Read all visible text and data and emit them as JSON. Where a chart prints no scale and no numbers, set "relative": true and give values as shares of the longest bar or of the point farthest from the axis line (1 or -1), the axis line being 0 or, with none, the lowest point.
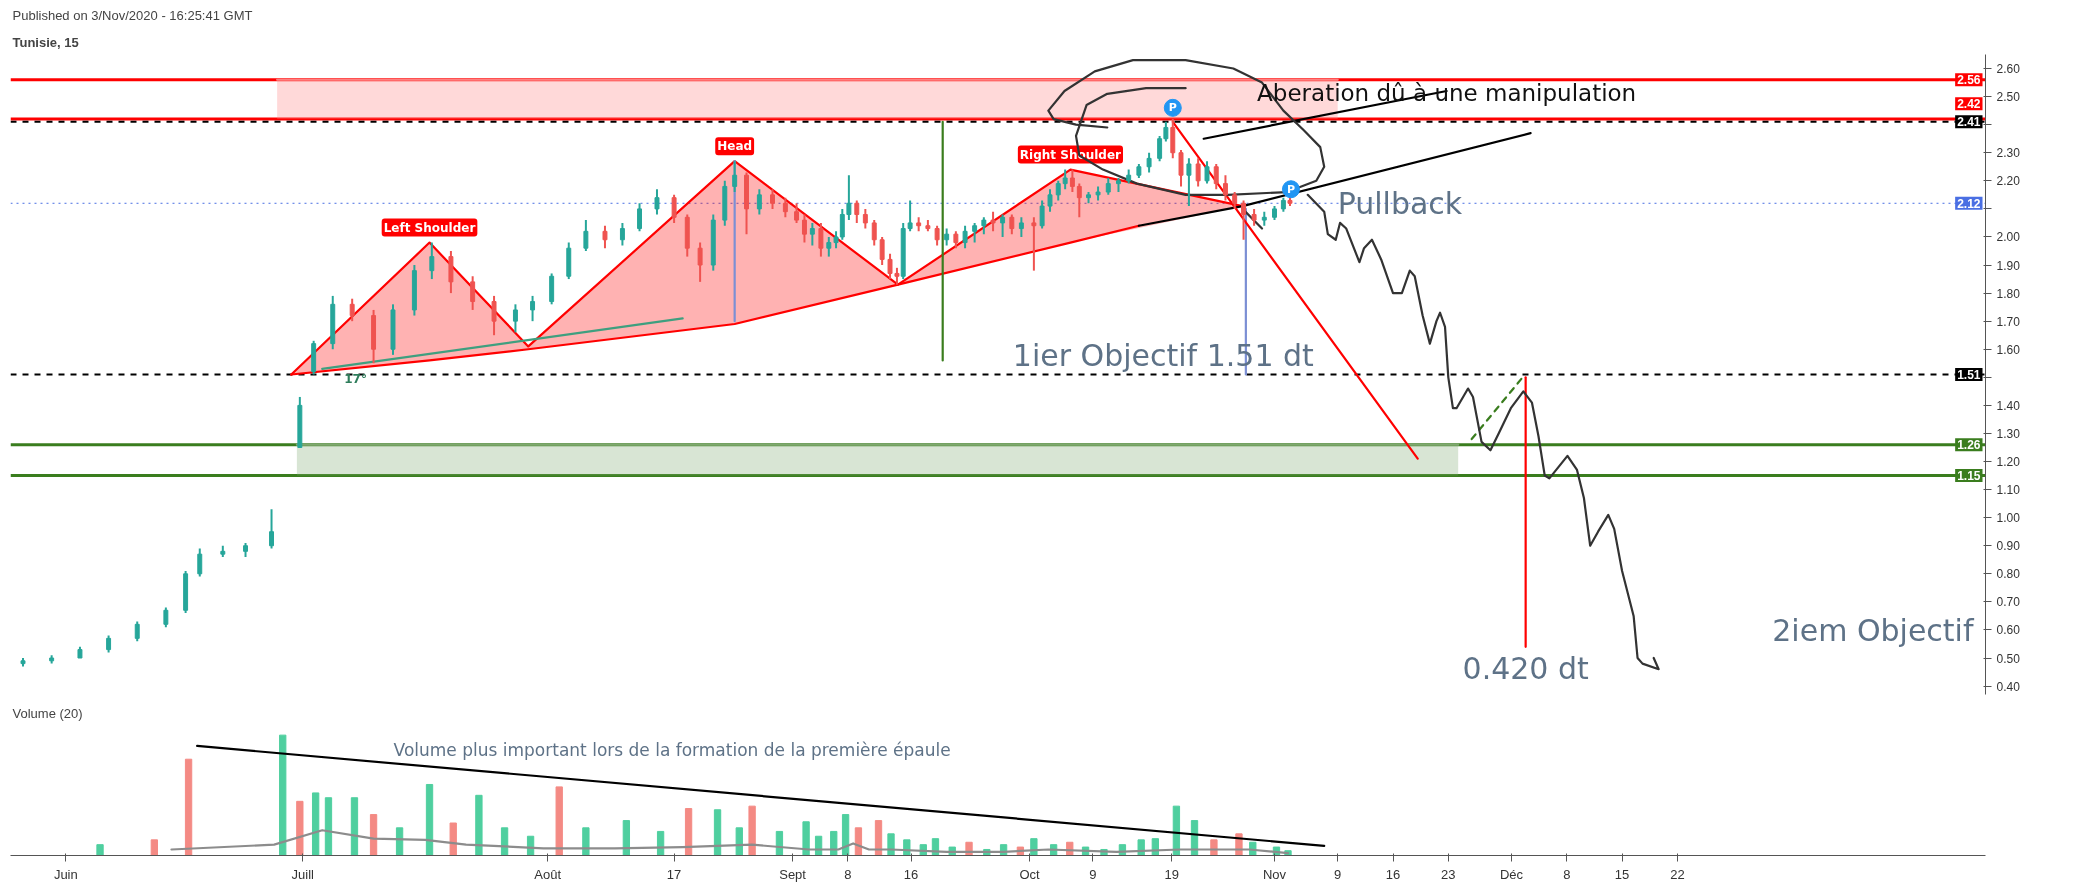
{
  "chart_data": [
    {
      "type": "candlestick",
      "subtitle": "Published on 3/Nov/2020 - 16:25:41 GMT",
      "title": "Tunisie, 15",
      "x": [
        "2020-05-26T14:00",
        "2020-05-30T05:00",
        "2020-06-02T19:00",
        "2020-06-06T10:00",
        "2020-06-10T01:00",
        "2020-06-13T16:00",
        "2020-06-16T04:00",
        "2020-06-17T23:00",
        "2020-06-20T21:00",
        "2020-06-23T18:00",
        "2020-06-27T01:00",
        "2020-06-30T15:00",
        "2020-07-02T09:00",
        "2020-07-04T19:00",
        "2020-07-07T06:00",
        "2020-07-09T23:00",
        "2020-07-12T10:00",
        "2020-07-15T03:00",
        "2020-07-17T08:00",
        "2020-07-19T18:00",
        "2020-07-22T12:00",
        "2020-07-25T05:00",
        "2020-07-27T22:00",
        "2020-07-30T02:00",
        "2020-08-01T12:00",
        "2020-08-03T16:00",
        "2020-08-05T20:00",
        "2020-08-08T06:00",
        "2020-08-10T11:00",
        "2020-08-12T15:00",
        "2020-08-14T20:00",
        "2020-08-17T00:00",
        "2020-08-18T16:00",
        "2020-08-20T07:00",
        "2020-08-21T23:00",
        "2020-08-23T10:00",
        "2020-08-24T16:00",
        "2020-08-26T04:00",
        "2020-08-27T19:00",
        "2020-08-29T11:00",
        "2020-08-31T02:00",
        "2020-09-01T12:00",
        "2020-09-02T12:00",
        "2020-09-03T12:00",
        "2020-09-04T14:00",
        "2020-09-05T14:00",
        "2020-09-06T12:00",
        "2020-09-07T07:00",
        "2020-09-08T03:00",
        "2020-09-09T03:00",
        "2020-09-10T05:00",
        "2020-09-11T08:00",
        "2020-09-12T08:00",
        "2020-09-13T08:00",
        "2020-09-14T05:00",
        "2020-09-15T00:00",
        "2020-09-15T21:00",
        "2020-09-16T23:00",
        "2020-09-18T03:00",
        "2020-09-19T07:00",
        "2020-09-20T12:00",
        "2020-09-21T16:00",
        "2020-09-22T20:00",
        "2020-09-24T01:00",
        "2020-09-25T05:00",
        "2020-09-26T09:00",
        "2020-09-27T14:00",
        "2020-09-28T18:00",
        "2020-09-29T23:00",
        "2020-10-01T13:00",
        "2020-10-02T14:00",
        "2020-10-03T14:00",
        "2020-10-04T15:00",
        "2020-10-05T12:00",
        "2020-10-06T10:00",
        "2020-10-07T07:00",
        "2020-10-08T11:00",
        "2020-10-09T16:00",
        "2020-10-10T23:00",
        "2020-10-12T06:00",
        "2020-10-13T13:00",
        "2020-10-14T20:00",
        "2020-10-16T03:00",
        "2020-10-17T11:00",
        "2020-10-18T06:00",
        "2020-10-19T03:00",
        "2020-10-20T04:00",
        "2020-10-21T04:00",
        "2020-10-22T08:00",
        "2020-10-23T11:00",
        "2020-10-24T15:00",
        "2020-10-25T19:00",
        "2020-10-26T23:00",
        "2020-10-28T02:00",
        "2020-10-29T10:00",
        "2020-10-30T17:00",
        "2020-11-01T00:00",
        "2020-11-02T03:00",
        "2020-11-02T23:00"
      ],
      "ohlc": [
        [
          0.48,
          0.5,
          0.47,
          0.49
        ],
        [
          0.49,
          0.51,
          0.48,
          0.5
        ],
        [
          0.5,
          0.54,
          0.5,
          0.53
        ],
        [
          0.53,
          0.58,
          0.52,
          0.57
        ],
        [
          0.57,
          0.63,
          0.56,
          0.62
        ],
        [
          0.62,
          0.68,
          0.61,
          0.67
        ],
        [
          0.67,
          0.81,
          0.66,
          0.8
        ],
        [
          0.8,
          0.89,
          0.79,
          0.87
        ],
        [
          0.87,
          0.9,
          0.86,
          0.88
        ],
        [
          0.88,
          0.91,
          0.86,
          0.9
        ],
        [
          0.9,
          1.03,
          0.89,
          0.95
        ],
        [
          1.25,
          1.43,
          1.25,
          1.4
        ],
        [
          1.52,
          1.63,
          1.51,
          1.62
        ],
        [
          1.62,
          1.79,
          1.6,
          1.76
        ],
        [
          1.76,
          1.78,
          1.7,
          1.72
        ],
        [
          1.72,
          1.74,
          1.55,
          1.6
        ],
        [
          1.6,
          1.76,
          1.58,
          1.74
        ],
        [
          1.74,
          1.9,
          1.72,
          1.88
        ],
        [
          1.88,
          1.98,
          1.85,
          1.93
        ],
        [
          1.93,
          1.95,
          1.8,
          1.84
        ],
        [
          1.84,
          1.86,
          1.74,
          1.77
        ],
        [
          1.77,
          1.79,
          1.65,
          1.7
        ],
        [
          1.7,
          1.76,
          1.66,
          1.74
        ],
        [
          1.74,
          1.79,
          1.7,
          1.77
        ],
        [
          1.77,
          1.87,
          1.76,
          1.86
        ],
        [
          1.86,
          1.98,
          1.85,
          1.96
        ],
        [
          1.96,
          2.06,
          1.95,
          2.02
        ],
        [
          2.02,
          2.04,
          1.96,
          1.99
        ],
        [
          1.99,
          2.05,
          1.97,
          2.03
        ],
        [
          2.03,
          2.12,
          2.02,
          2.1
        ],
        [
          2.1,
          2.17,
          2.08,
          2.14
        ],
        [
          2.14,
          2.15,
          2.05,
          2.07
        ],
        [
          2.07,
          2.08,
          1.93,
          1.96
        ],
        [
          1.96,
          1.98,
          1.84,
          1.9
        ],
        [
          1.9,
          2.08,
          1.88,
          2.06
        ],
        [
          2.06,
          2.2,
          2.04,
          2.18
        ],
        [
          2.18,
          2.27,
          2.16,
          2.22
        ],
        [
          2.22,
          2.23,
          2.01,
          2.1
        ],
        [
          2.1,
          2.17,
          2.08,
          2.15
        ],
        [
          2.15,
          2.17,
          2.1,
          2.12
        ],
        [
          2.12,
          2.14,
          2.07,
          2.09
        ],
        [
          2.09,
          2.12,
          2.05,
          2.06
        ],
        [
          2.06,
          2.08,
          1.98,
          2.01
        ],
        [
          2.01,
          2.05,
          1.97,
          2.03
        ],
        [
          2.03,
          2.05,
          1.93,
          1.96
        ],
        [
          1.96,
          2.0,
          1.93,
          1.98
        ],
        [
          1.98,
          2.02,
          1.96,
          2.0
        ],
        [
          2.0,
          2.1,
          1.99,
          2.08
        ],
        [
          2.08,
          2.22,
          2.06,
          2.12
        ],
        [
          2.12,
          2.13,
          2.05,
          2.08
        ],
        [
          2.08,
          2.1,
          2.03,
          2.05
        ],
        [
          2.05,
          2.06,
          1.97,
          1.99
        ],
        [
          1.99,
          2.0,
          1.9,
          1.92
        ],
        [
          1.92,
          1.94,
          1.85,
          1.87
        ],
        [
          1.87,
          1.89,
          1.83,
          1.86
        ],
        [
          1.86,
          2.05,
          1.85,
          2.03
        ],
        [
          2.03,
          2.13,
          2.02,
          2.05
        ],
        [
          2.05,
          2.07,
          2.02,
          2.04
        ],
        [
          2.04,
          2.06,
          2.02,
          2.03
        ],
        [
          2.03,
          2.04,
          1.97,
          1.99
        ],
        [
          1.99,
          2.03,
          1.97,
          2.01
        ],
        [
          2.01,
          2.02,
          1.96,
          1.98
        ],
        [
          1.98,
          2.04,
          1.96,
          2.02
        ],
        [
          2.02,
          2.05,
          1.98,
          2.04
        ],
        [
          2.04,
          2.07,
          2.01,
          2.06
        ],
        [
          2.06,
          2.09,
          2.02,
          2.05
        ],
        [
          2.05,
          2.08,
          2.0,
          2.07
        ],
        [
          2.07,
          2.08,
          2.01,
          2.03
        ],
        [
          2.03,
          2.07,
          2.0,
          2.05
        ],
        [
          2.05,
          2.07,
          1.88,
          2.04
        ],
        [
          2.04,
          2.13,
          2.03,
          2.11
        ],
        [
          2.11,
          2.17,
          2.09,
          2.15
        ],
        [
          2.15,
          2.2,
          2.13,
          2.19
        ],
        [
          2.19,
          2.24,
          2.17,
          2.21
        ],
        [
          2.21,
          2.24,
          2.16,
          2.18
        ],
        [
          2.18,
          2.19,
          2.07,
          2.14
        ],
        [
          2.14,
          2.16,
          2.12,
          2.15
        ],
        [
          2.15,
          2.18,
          2.13,
          2.16
        ],
        [
          2.16,
          2.21,
          2.15,
          2.19
        ],
        [
          2.19,
          2.21,
          2.16,
          2.2
        ],
        [
          2.2,
          2.24,
          2.19,
          2.22
        ],
        [
          2.22,
          2.26,
          2.21,
          2.25
        ],
        [
          2.25,
          2.3,
          2.23,
          2.28
        ],
        [
          2.28,
          2.36,
          2.27,
          2.35
        ],
        [
          2.35,
          2.41,
          2.34,
          2.39
        ],
        [
          2.39,
          2.42,
          2.28,
          2.3
        ],
        [
          2.3,
          2.31,
          2.18,
          2.22
        ],
        [
          2.22,
          2.28,
          2.11,
          2.26
        ],
        [
          2.26,
          2.28,
          2.18,
          2.2
        ],
        [
          2.2,
          2.27,
          2.19,
          2.25
        ],
        [
          2.25,
          2.26,
          2.17,
          2.19
        ],
        [
          2.19,
          2.22,
          2.13,
          2.15
        ],
        [
          2.15,
          2.16,
          2.1,
          2.12
        ],
        [
          2.12,
          2.13,
          1.99,
          2.08
        ],
        [
          2.08,
          2.1,
          2.04,
          2.06
        ],
        [
          2.06,
          2.09,
          2.04,
          2.07
        ],
        [
          2.07,
          2.11,
          2.06,
          2.1
        ],
        [
          2.1,
          2.14,
          2.09,
          2.13
        ],
        [
          2.13,
          2.15,
          2.11,
          2.12
        ]
      ],
      "colors": [
        "#26a69a",
        "#26a69a",
        "#26a69a",
        "#26a69a",
        "#26a69a",
        "#26a69a",
        "#26a69a",
        "#26a69a",
        "#26a69a",
        "#26a69a",
        "#26a69a",
        "#26a69a",
        "#26a69a",
        "#26a69a",
        "#ef5350",
        "#ef5350",
        "#26a69a",
        "#26a69a",
        "#26a69a",
        "#ef5350",
        "#ef5350",
        "#ef5350",
        "#26a69a",
        "#26a69a",
        "#26a69a",
        "#26a69a",
        "#26a69a",
        "#ef5350",
        "#26a69a",
        "#26a69a",
        "#26a69a",
        "#ef5350",
        "#ef5350",
        "#ef5350",
        "#26a69a",
        "#26a69a",
        "#26a69a",
        "#ef5350",
        "#26a69a",
        "#ef5350",
        "#ef5350",
        "#ef5350",
        "#ef5350",
        "#26a69a",
        "#ef5350",
        "#26a69a",
        "#26a69a",
        "#26a69a",
        "#26a69a",
        "#ef5350",
        "#ef5350",
        "#ef5350",
        "#ef5350",
        "#ef5350",
        "#ef5350",
        "#26a69a",
        "#26a69a",
        "#ef5350",
        "#ef5350",
        "#ef5350",
        "#26a69a",
        "#ef5350",
        "#26a69a",
        "#26a69a",
        "#26a69a",
        "#ef5350",
        "#26a69a",
        "#ef5350",
        "#26a69a",
        "#ef5350",
        "#26a69a",
        "#26a69a",
        "#26a69a",
        "#26a69a",
        "#ef5350",
        "#ef5350",
        "#26a69a",
        "#26a69a",
        "#26a69a",
        "#26a69a",
        "#26a69a",
        "#26a69a",
        "#26a69a",
        "#26a69a",
        "#26a69a",
        "#ef5350",
        "#ef5350",
        "#26a69a",
        "#ef5350",
        "#26a69a",
        "#ef5350",
        "#ef5350",
        "#ef5350",
        "#ef5350",
        "#ef5350",
        "#26a69a",
        "#26a69a",
        "#26a69a",
        "#ef5350"
      ],
      "xlim": [
        "2020-05-25",
        "2021-01-30"
      ],
      "ylim": [
        0.37,
        2.65
      ],
      "yticks": [
        {
          "value": 0.4,
          "label": "0.40"
        },
        {
          "value": 0.5,
          "label": "0.50"
        },
        {
          "value": 0.6,
          "label": "0.60"
        },
        {
          "value": 0.7,
          "label": "0.70"
        },
        {
          "value": 0.8,
          "label": "0.80"
        },
        {
          "value": 0.9,
          "label": "0.90"
        },
        {
          "value": 1.0,
          "label": "1.00"
        },
        {
          "value": 1.1,
          "label": "1.10"
        },
        {
          "value": 1.2,
          "label": "1.20"
        },
        {
          "value": 1.3,
          "label": "1.30"
        },
        {
          "value": 1.4,
          "label": "1.40"
        },
        {
          "value": 1.5,
          "label": null
        },
        {
          "value": 1.6,
          "label": "1.60"
        },
        {
          "value": 1.7,
          "label": "1.70"
        },
        {
          "value": 1.8,
          "label": "1.80"
        },
        {
          "value": 1.9,
          "label": "1.90"
        },
        {
          "value": 2.0,
          "label": "2.00"
        },
        {
          "value": 2.1,
          "label": null
        },
        {
          "value": 2.2,
          "label": "2.20"
        },
        {
          "value": 2.3,
          "label": "2.30"
        },
        {
          "value": 2.4,
          "label": null
        },
        {
          "value": 2.5,
          "label": "2.50"
        },
        {
          "value": 2.6,
          "label": "2.60"
        }
      ],
      "tick_labels": "y",
      "ref_lines": [
        {
          "axis": "y",
          "value": 2.56,
          "label": "2.56",
          "color": "#ff0000"
        },
        {
          "axis": "y",
          "value": 2.42,
          "label": "2.42",
          "color": "#ff0000"
        },
        {
          "axis": "y",
          "value": 2.41,
          "label": "2.41",
          "color": "#000000",
          "line_style": "dashed"
        },
        {
          "axis": "y",
          "value": 2.12,
          "label": "2.12",
          "color": "#4a6fe3",
          "line_style": "dotted"
        },
        {
          "axis": "y",
          "value": 1.51,
          "label": "1.51",
          "color": "#000000",
          "line_style": "dashed"
        },
        {
          "axis": "y",
          "value": 1.26,
          "label": "1.26",
          "color": "#3a7d1e"
        },
        {
          "axis": "y",
          "value": 1.15,
          "label": "1.15",
          "color": "#3a7d1e"
        }
      ],
      "annotations": [
        {
          "text": "Left Shoulder",
          "x": "2020-07-17T01:00",
          "y": 1.98
        },
        {
          "text": "Head",
          "x": "2020-08-24T16:00",
          "y": 2.27
        },
        {
          "text": "Right Shoulder",
          "x": "2020-10-06T04:00",
          "y": 2.24
        },
        {
          "text": "Aberation dû à une manipulation",
          "x": "2020-11-22T19:00",
          "y": 2.52
        },
        {
          "text": "Pullback",
          "x": "2020-11-09T00:00",
          "y": 2.12
        },
        {
          "text": "1ier Objectif 1.51 dt",
          "x": "2020-09-28T21:00",
          "y": 1.51
        },
        {
          "text": "0.420 dt",
          "x": "2020-12-02T19:00",
          "y": 0.54
        },
        "2iem Objectif",
        {
          "text": "17°",
          "x": "2020-07-03T11:00",
          "y": 1.53
        }
      ],
      "series": [
        {
          "type": "line",
          "color": "#ff8080",
          "x": [
            "2020-06-27T18:00",
            "2020-11-09T00:00"
          ],
          "values": [
            2.56,
            2.56
          ],
          "lower": [
            2.42,
            2.42
          ],
          "upper": [
            2.56,
            2.56
          ]
        },
        {
          "type": "line",
          "color": "#7fa86f",
          "x": [
            "2020-06-30T06:00",
            "2020-11-24T06:00"
          ],
          "values": [
            1.26,
            1.26
          ],
          "lower": [
            1.15,
            1.15
          ],
          "upper": [
            1.26,
            1.26
          ]
        },
        {
          "type": "line",
          "color": "#ff0000",
          "x": [
            "2020-06-29T13:00",
            "2020-07-17T01:00",
            "2020-07-29T13:00",
            "2020-08-24T16:00",
            "2020-09-14T08:00",
            "2020-10-06T04:00",
            "2020-10-27T23:00"
          ],
          "values": [
            1.51,
            1.98,
            1.61,
            2.27,
            1.83,
            2.24,
            2.11
          ],
          "lower": [
            1.51,
            1.56,
            1.6,
            1.69,
            1.83,
            1.98,
            2.11
          ],
          "upper": [
            1.51,
            1.98,
            1.61,
            2.27,
            1.83,
            2.24,
            2.11
          ]
        },
        {
          "type": "line",
          "color": "#ff0000",
          "x": [
            "2020-06-29T13:00",
            "2020-07-17T01:00",
            "2020-07-29T13:00",
            "2020-08-24T16:00",
            "2020-09-14T08:00",
            "2020-10-06T04:00",
            "2020-10-14T20:00"
          ],
          "values": [
            1.51,
            1.56,
            1.6,
            1.69,
            1.83,
            1.98,
            2.04
          ]
        },
        {
          "type": "line",
          "color": "#000000",
          "x": [
            "2020-10-14T20:00",
            "2020-10-27T23:00",
            "2020-12-03T10:00"
          ],
          "values": [
            2.04,
            2.11,
            2.37
          ]
        },
        {
          "type": "line",
          "color": "#3f9f7f",
          "x": [
            "2020-07-03T11:00",
            "2020-08-18T02:00"
          ],
          "values": [
            1.53,
            1.71
          ]
        },
        {
          "type": "line",
          "color": "#7b8fd4",
          "x": [
            "2020-08-24T16:00",
            "2020-08-24T16:00"
          ],
          "values": [
            2.27,
            1.7
          ]
        },
        {
          "type": "line",
          "color": "#7b8fd4",
          "x": [
            "2020-10-28T09:00",
            "2020-10-28T09:00"
          ],
          "values": [
            2.1,
            1.51
          ]
        },
        {
          "type": "line",
          "color": "#3a7d1e",
          "x": [
            "2020-09-20T00:00",
            "2020-09-20T00:00"
          ],
          "values": [
            1.56,
            2.41
          ]
        },
        {
          "type": "line",
          "color": "#ff0000",
          "x": [
            "2020-10-19T03:00",
            "2020-11-19T03:00"
          ],
          "values": [
            2.41,
            1.21
          ]
        },
        {
          "type": "line",
          "color": "#3a7d1e",
          "line_style": "dashed",
          "x": [
            "2020-11-25T23:00",
            "2020-12-02T17:00"
          ],
          "values": [
            1.28,
            1.51
          ]
        },
        {
          "type": "line",
          "color": "#ff0000",
          "x": [
            "2020-12-02T19:00",
            "2020-12-02T19:00"
          ],
          "values": [
            1.5,
            0.54
          ]
        },
        {
          "type": "line",
          "color": "#000000",
          "x": [
            "2020-11-22T19:00",
            "2020-10-23T01:00"
          ],
          "values": [
            2.52,
            2.35
          ]
        },
        {
          "type": "line",
          "color": "#333333",
          "x": [
            "2020-10-27T23:00",
            "2020-10-30T10:00",
            "2020-11-03T05:00",
            "2020-11-05T05:00",
            "2020-11-07T07:00",
            "2020-11-07T18:00",
            "2020-11-08T18:00",
            "2020-11-09T07:00",
            "2020-11-10T02:00",
            "2020-11-11T18:00",
            "2020-11-12T08:00",
            "2020-11-13T08:00",
            "2020-11-14T12:00",
            "2020-11-16T00:00",
            "2020-11-17T03:00",
            "2020-11-18T03:00",
            "2020-11-18T18:00",
            "2020-11-19T18:00",
            "2020-11-20T16:00",
            "2020-11-21T12:00",
            "2020-11-21T23:00",
            "2020-11-22T14:00",
            "2020-11-23T00:00",
            "2020-11-23T14:00",
            "2020-11-24T01:00",
            "2020-11-25T12:00",
            "2020-11-26T03:00",
            "2020-11-27T05:00",
            "2020-11-28T08:00",
            "2020-11-29T09:00",
            "2020-11-30T22:00",
            "2020-12-02T12:00",
            "2020-12-03T14:00",
            "2020-12-04T10:00",
            "2020-12-05T05:00",
            "2020-12-05T19:00",
            "2020-12-08T02:00",
            "2020-12-09T07:00",
            "2020-12-10T04:00",
            "2020-12-10T23:00",
            "2020-12-11T23:00",
            "2020-12-13T06:00",
            "2020-12-14T00:00",
            "2020-12-15T00:00",
            "2020-12-16T11:00",
            "2020-12-16T23:00",
            "2020-12-17T14:00",
            "2020-12-19T15:00",
            "2020-12-19T00:00"
          ],
          "values": [
            2.1,
            2.03,
            null,
            2.15,
            2.09,
            2.01,
            1.99,
            2.05,
            2.03,
            1.91,
            1.96,
            1.99,
            1.92,
            1.8,
            1.8,
            1.88,
            1.86,
            1.72,
            1.62,
            1.7,
            1.73,
            1.68,
            1.5,
            1.39,
            1.39,
            1.46,
            1.43,
            1.27,
            1.24,
            1.3,
            1.39,
            1.45,
            1.41,
            1.29,
            1.15,
            1.14,
            1.22,
            1.17,
            1.07,
            0.9,
            0.95,
            1.01,
            0.96,
            0.81,
            0.65,
            0.5,
            0.48,
            0.46,
            0.5
          ]
        },
        {
          "type": "line",
          "color": "#333333",
          "x": [
            "2020-10-20T18:00",
            "2020-10-15T18:00",
            "2020-10-10T20:00",
            "2020-10-08T05:00",
            "2020-10-06T21:00",
            "2020-10-07T07:00",
            "2020-10-10T07:00",
            "2020-10-14T14:00",
            "2020-10-20T18:00",
            "2020-10-26T02:00",
            "2020-11-02T14:00",
            "2020-11-06T07:00",
            "2020-11-07T07:00",
            "2020-11-06T19:00",
            "2020-11-04T17:00",
            "2020-11-02T03:00",
            "2020-10-30T10:00",
            "2020-10-26T19:00",
            "2020-10-20T18:00",
            "2020-10-14T02:00",
            "2020-10-09T06:00",
            "2020-10-05T10:00",
            "2020-10-03T09:00",
            "2020-10-04T01:00",
            "2020-10-06T21:00",
            "2020-10-10T20:00"
          ],
          "values": [
            2.53,
            2.53,
            2.51,
            2.47,
            2.36,
            2.29,
            2.24,
            2.19,
            2.15,
            2.15,
            2.16,
            2.2,
            2.25,
            2.32,
            2.38,
            2.45,
            2.55,
            2.6,
            2.63,
            2.63,
            2.59,
            2.52,
            2.45,
            2.42,
            2.4,
            2.39
          ]
        },
        {
          "type": "scatter",
          "name": "P",
          "color": "#2196f3",
          "marker": "circle",
          "x": [
            "2020-10-19T03:00",
            "2020-11-03T02:00"
          ],
          "values": [
            2.46,
            2.17
          ]
        }
      ]
    },
    {
      "type": "bar",
      "title": "Volume (20)",
      "relative": true,
      "xlim": [
        "2020-05-25",
        "2021-01-30"
      ],
      "xticks": [
        {
          "value": "2020-06-01",
          "label": "Juin"
        },
        {
          "value": "2020-07-01",
          "label": "Juill"
        },
        {
          "value": "2020-08-01",
          "label": "Août"
        },
        {
          "value": "2020-08-17",
          "label": "17"
        },
        {
          "value": "2020-09-01",
          "label": "Sept"
        },
        {
          "value": "2020-09-08",
          "label": "8"
        },
        {
          "value": "2020-09-16",
          "label": "16"
        },
        {
          "value": "2020-10-01",
          "label": "Oct"
        },
        {
          "value": "2020-10-09",
          "label": "9"
        },
        {
          "value": "2020-10-19",
          "label": "19"
        },
        {
          "value": "2020-11-01",
          "label": "Nov"
        },
        {
          "value": "2020-11-09",
          "label": "9"
        },
        {
          "value": "2020-11-16",
          "label": "16"
        },
        {
          "value": "2020-11-23",
          "label": "23"
        },
        {
          "value": "2020-12-01",
          "label": "Déc"
        },
        {
          "value": "2020-12-08",
          "label": "8"
        },
        {
          "value": "2020-12-15",
          "label": "15"
        },
        {
          "value": "2020-12-22",
          "label": "22"
        }
      ],
      "annotations": [
        "Volume plus important lors de la formation de la première épaule"
      ],
      "series": [
        {
          "type": "bar",
          "x": [
            "2020-06-05T08:00",
            "2020-06-12T05:00",
            "2020-06-16T13:00",
            "2020-06-28T11:00",
            "2020-06-30T15:00",
            "2020-07-02T15:00",
            "2020-07-04T06:00",
            "2020-07-07T13:00",
            "2020-07-09T23:00",
            "2020-07-13T06:00",
            "2020-07-17T01:00",
            "2020-07-20T01:00",
            "2020-07-23T07:00",
            "2020-07-26T13:00",
            "2020-07-29T20:00",
            "2020-08-02T11:00",
            "2020-08-05T20:00",
            "2020-08-10T23:00",
            "2020-08-15T07:00",
            "2020-08-18T20:00",
            "2020-08-22T12:00",
            "2020-08-25T06:00",
            "2020-08-26T21:00",
            "2020-08-30T08:00",
            "2020-09-02T17:00",
            "2020-09-04T07:00",
            "2020-09-06T05:00",
            "2020-09-07T17:00",
            "2020-09-09T08:00",
            "2020-09-11T21:00",
            "2020-09-13T11:00",
            "2020-09-15T11:00",
            "2020-09-17T13:00",
            "2020-09-19T02:00",
            "2020-09-21T05:00",
            "2020-09-23T08:00",
            "2020-09-25T14:00",
            "2020-09-27T17:00",
            "2020-09-29T20:00",
            "2020-10-01T13:00",
            "2020-10-04T01:00",
            "2020-10-06T02:00",
            "2020-10-08T02:00",
            "2020-10-10T10:00",
            "2020-10-12T18:00",
            "2020-10-15T03:00",
            "2020-10-16T22:00",
            "2020-10-19T14:00",
            "2020-10-21T21:00",
            "2020-10-24T08:00",
            "2020-10-27T12:00",
            "2020-10-29T06:00",
            "2020-11-01T06:00",
            "2020-11-02T17:00"
          ],
          "values": [
            0.09,
            0.13,
            0.8,
            1.0,
            0.45,
            0.52,
            0.48,
            0.48,
            0.34,
            0.23,
            0.59,
            0.27,
            0.5,
            0.23,
            0.16,
            0.57,
            0.23,
            0.29,
            0.2,
            0.39,
            0.38,
            0.23,
            0.41,
            0.2,
            0.28,
            0.16,
            0.2,
            0.34,
            0.23,
            0.29,
            0.18,
            0.13,
            0.09,
            0.14,
            0.07,
            0.11,
            0.05,
            0.09,
            0.07,
            0.14,
            0.09,
            0.11,
            0.07,
            0.05,
            0.09,
            0.13,
            0.14,
            0.41,
            0.29,
            0.13,
            0.18,
            0.11,
            0.07,
            0.04
          ],
          "colors": [
            "#4fcf9f",
            "#f48a84",
            "#f48a84",
            "#4fcf9f",
            "#f48a84",
            "#4fcf9f",
            "#4fcf9f",
            "#4fcf9f",
            "#f48a84",
            "#4fcf9f",
            "#4fcf9f",
            "#f48a84",
            "#4fcf9f",
            "#4fcf9f",
            "#4fcf9f",
            "#f48a84",
            "#4fcf9f",
            "#4fcf9f",
            "#4fcf9f",
            "#f48a84",
            "#4fcf9f",
            "#4fcf9f",
            "#f48a84",
            "#4fcf9f",
            "#4fcf9f",
            "#4fcf9f",
            "#4fcf9f",
            "#4fcf9f",
            "#f48a84",
            "#f48a84",
            "#4fcf9f",
            "#4fcf9f",
            "#4fcf9f",
            "#4fcf9f",
            "#4fcf9f",
            "#f48a84",
            "#4fcf9f",
            "#4fcf9f",
            "#f48a84",
            "#4fcf9f",
            "#4fcf9f",
            "#f48a84",
            "#4fcf9f",
            "#4fcf9f",
            "#4fcf9f",
            "#4fcf9f",
            "#4fcf9f",
            "#4fcf9f",
            "#4fcf9f",
            "#f48a84",
            "#f48a84",
            "#4fcf9f",
            "#4fcf9f",
            "#4fcf9f"
          ]
        },
        {
          "type": "line",
          "color": "#8c8c8c",
          "x": [
            "2020-06-14T09:00",
            "2020-06-27T09:00",
            "2020-07-03T11:00",
            "2020-07-09T23:00",
            "2020-07-16T12:00",
            "2020-07-21T16:00",
            "2020-07-31T11:00",
            "2020-08-09T12:00",
            "2020-08-18T02:00",
            "2020-08-26T21:00",
            "2020-09-03T02:00",
            "2020-09-06T19:00",
            "2020-09-08T16:00",
            "2020-09-10T16:00",
            "2020-09-13T11:00",
            "2020-09-20T12:00",
            "2020-09-27T17:00",
            "2020-10-03T09:00",
            "2020-10-12T00:00",
            "2020-10-20T00:00",
            "2020-10-28T20:00",
            "2020-11-02T17:00"
          ],
          "values": [
            0.05,
            0.09,
            0.21,
            0.14,
            0.13,
            0.09,
            0.06,
            0.06,
            0.07,
            0.09,
            0.05,
            0.05,
            0.1,
            0.05,
            0.05,
            0.03,
            0.03,
            0.05,
            0.03,
            0.05,
            0.05,
            0.02
          ]
        },
        {
          "type": "line",
          "color": "#000000",
          "x": [
            "2020-06-17T15:00",
            "2020-11-07T07:00"
          ],
          "values": [
            0.91,
            0.08
          ]
        }
      ]
    }
  ]
}
